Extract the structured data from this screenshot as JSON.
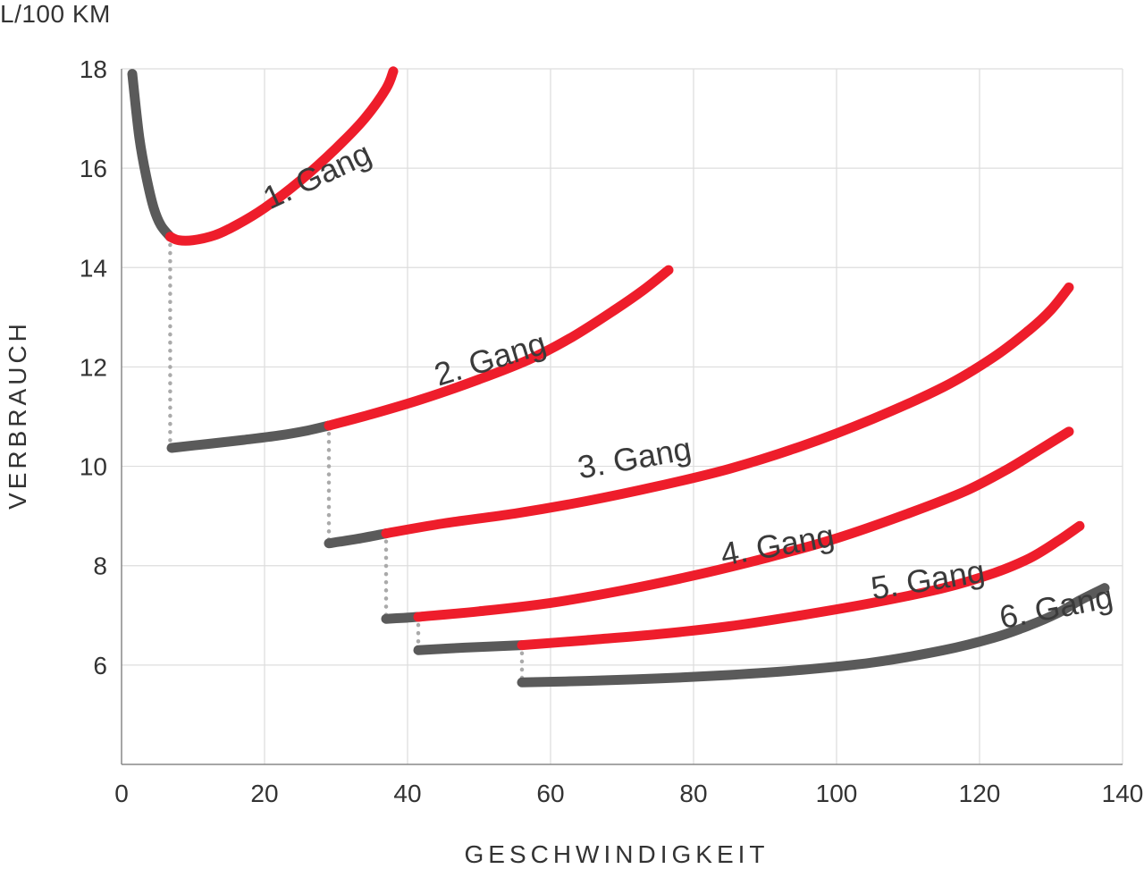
{
  "chart_data": {
    "type": "line",
    "title": "",
    "ytitle": "L/100 KM",
    "ylabel": "VERBRAUCH",
    "xlabel": "GESCHWINDIGKEIT",
    "xlim": [
      0,
      140
    ],
    "ylim": [
      4,
      18
    ],
    "xticks": [
      0,
      20,
      40,
      60,
      80,
      100,
      120,
      140
    ],
    "yticks": [
      6,
      8,
      10,
      12,
      14,
      16,
      18
    ],
    "grid": true,
    "colors": {
      "inefficient": "#5a5a5a",
      "efficient": "#ee1d2b",
      "shift": "#aaaaaa",
      "grid": "#dddddd"
    },
    "series": [
      {
        "name": "1. Gang",
        "gray": [
          [
            1.5,
            17.9
          ],
          [
            2.5,
            16.6
          ],
          [
            3.5,
            15.8
          ],
          [
            4.5,
            15.2
          ],
          [
            5.5,
            14.85
          ],
          [
            6.8,
            14.62
          ]
        ],
        "red": [
          [
            6.8,
            14.62
          ],
          [
            8,
            14.55
          ],
          [
            10,
            14.55
          ],
          [
            13,
            14.65
          ],
          [
            16,
            14.85
          ],
          [
            20,
            15.2
          ],
          [
            25,
            15.75
          ],
          [
            30,
            16.4
          ],
          [
            34,
            17.0
          ],
          [
            37,
            17.6
          ],
          [
            38,
            17.95
          ]
        ]
      },
      {
        "name": "2. Gang",
        "gray": [
          [
            7,
            10.37
          ],
          [
            12,
            10.45
          ],
          [
            17,
            10.53
          ],
          [
            22,
            10.62
          ],
          [
            26,
            10.72
          ],
          [
            29,
            10.82
          ]
        ],
        "red": [
          [
            29,
            10.82
          ],
          [
            35,
            11.05
          ],
          [
            42,
            11.35
          ],
          [
            50,
            11.75
          ],
          [
            57,
            12.15
          ],
          [
            63,
            12.6
          ],
          [
            69,
            13.15
          ],
          [
            73,
            13.55
          ],
          [
            76.5,
            13.95
          ]
        ]
      },
      {
        "name": "3. Gang",
        "gray": [
          [
            29,
            8.45
          ],
          [
            33,
            8.54
          ],
          [
            37,
            8.65
          ]
        ],
        "red": [
          [
            37,
            8.65
          ],
          [
            45,
            8.85
          ],
          [
            55,
            9.05
          ],
          [
            65,
            9.3
          ],
          [
            75,
            9.6
          ],
          [
            85,
            9.95
          ],
          [
            95,
            10.4
          ],
          [
            105,
            10.95
          ],
          [
            115,
            11.6
          ],
          [
            122,
            12.2
          ],
          [
            127,
            12.75
          ],
          [
            130,
            13.15
          ],
          [
            132.5,
            13.6
          ]
        ]
      },
      {
        "name": "4. Gang",
        "gray": [
          [
            37,
            6.93
          ],
          [
            39.5,
            6.95
          ],
          [
            41.5,
            6.97
          ]
        ],
        "red": [
          [
            41.5,
            6.97
          ],
          [
            50,
            7.08
          ],
          [
            60,
            7.25
          ],
          [
            70,
            7.5
          ],
          [
            80,
            7.8
          ],
          [
            90,
            8.15
          ],
          [
            100,
            8.55
          ],
          [
            110,
            9.05
          ],
          [
            118,
            9.5
          ],
          [
            124,
            9.95
          ],
          [
            128,
            10.3
          ],
          [
            132.5,
            10.7
          ]
        ]
      },
      {
        "name": "5. Gang",
        "gray": [
          [
            41.5,
            6.3
          ],
          [
            48,
            6.35
          ],
          [
            56,
            6.4
          ]
        ],
        "red": [
          [
            56,
            6.4
          ],
          [
            65,
            6.5
          ],
          [
            75,
            6.62
          ],
          [
            85,
            6.78
          ],
          [
            95,
            7.0
          ],
          [
            105,
            7.25
          ],
          [
            115,
            7.55
          ],
          [
            122,
            7.85
          ],
          [
            127,
            8.15
          ],
          [
            131,
            8.5
          ],
          [
            134,
            8.8
          ]
        ]
      },
      {
        "name": "6. Gang",
        "gray": [
          [
            56,
            5.65
          ],
          [
            65,
            5.68
          ],
          [
            75,
            5.73
          ],
          [
            85,
            5.8
          ],
          [
            95,
            5.9
          ],
          [
            105,
            6.05
          ],
          [
            115,
            6.3
          ],
          [
            122,
            6.55
          ],
          [
            127,
            6.8
          ],
          [
            131,
            7.05
          ],
          [
            134,
            7.3
          ],
          [
            137.5,
            7.55
          ]
        ],
        "red": []
      }
    ],
    "shift_lines": [
      {
        "x": 6.8,
        "y_from": 14.62,
        "y_to": 10.37
      },
      {
        "x": 29,
        "y_from": 10.82,
        "y_to": 8.45
      },
      {
        "x": 37,
        "y_from": 8.65,
        "y_to": 6.93
      },
      {
        "x": 41.5,
        "y_from": 6.97,
        "y_to": 6.3
      },
      {
        "x": 56,
        "y_from": 6.4,
        "y_to": 5.65
      }
    ]
  }
}
